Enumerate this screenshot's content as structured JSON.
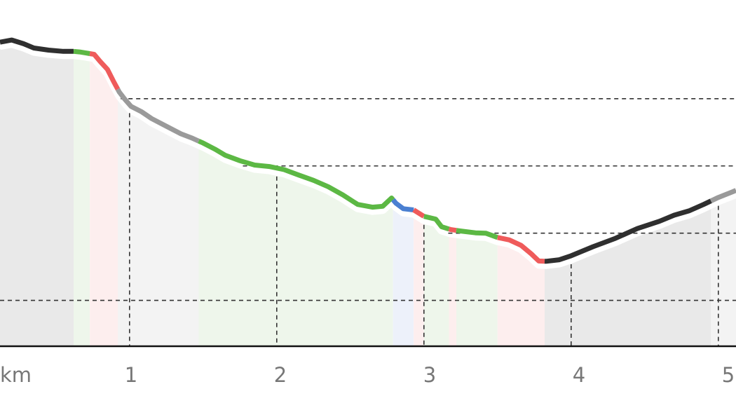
{
  "chart_data": {
    "type": "area",
    "title": "",
    "xlabel": "",
    "ylabel": "",
    "x_unit": "km",
    "x_ticks": [
      1,
      2,
      3,
      4,
      5
    ],
    "xlim": [
      0.12,
      5.12
    ],
    "ylim": [
      0,
      100
    ],
    "y_gridlines": [
      15,
      37,
      59,
      81
    ],
    "grid": true,
    "colors": {
      "black": "#2f2f2f",
      "gray": "#9a9a9a",
      "green": "#5cb844",
      "red": "#ef5b5b",
      "blue": "#4a7fd1"
    },
    "segment_fills": {
      "black": "#e9e9e9",
      "gray": "#f3f3f3",
      "green": "#eef6eb",
      "red": "#fdeeee",
      "blue": "#edf1fa"
    },
    "profile": [
      [
        0.12,
        99.5
      ],
      [
        0.2,
        100.2
      ],
      [
        0.28,
        99.0
      ],
      [
        0.35,
        97.6
      ],
      [
        0.45,
        96.9
      ],
      [
        0.55,
        96.5
      ],
      [
        0.62,
        96.5
      ],
      [
        0.66,
        96.3
      ],
      [
        0.7,
        96.0
      ],
      [
        0.76,
        95.5
      ],
      [
        0.8,
        93.2
      ],
      [
        0.85,
        90.6
      ],
      [
        0.89,
        86.8
      ],
      [
        0.93,
        83.2
      ],
      [
        0.97,
        80.7
      ],
      [
        1.01,
        78.5
      ],
      [
        1.08,
        76.8
      ],
      [
        1.15,
        74.5
      ],
      [
        1.25,
        72.0
      ],
      [
        1.35,
        69.5
      ],
      [
        1.42,
        68.2
      ],
      [
        1.5,
        66.5
      ],
      [
        1.58,
        64.5
      ],
      [
        1.65,
        62.5
      ],
      [
        1.75,
        60.7
      ],
      [
        1.85,
        59.3
      ],
      [
        1.95,
        58.8
      ],
      [
        2.05,
        57.8
      ],
      [
        2.15,
        56.0
      ],
      [
        2.25,
        54.3
      ],
      [
        2.35,
        52.2
      ],
      [
        2.45,
        49.5
      ],
      [
        2.55,
        46.4
      ],
      [
        2.65,
        45.5
      ],
      [
        2.72,
        45.8
      ],
      [
        2.78,
        48.5
      ],
      [
        2.81,
        46.8
      ],
      [
        2.86,
        45.0
      ],
      [
        2.93,
        44.6
      ],
      [
        3.0,
        42.5
      ],
      [
        3.08,
        41.6
      ],
      [
        3.12,
        39.1
      ],
      [
        3.18,
        38.2
      ],
      [
        3.25,
        37.7
      ],
      [
        3.35,
        37.1
      ],
      [
        3.42,
        37.0
      ],
      [
        3.5,
        35.6
      ],
      [
        3.58,
        34.8
      ],
      [
        3.66,
        33.0
      ],
      [
        3.73,
        30.2
      ],
      [
        3.78,
        27.9
      ],
      [
        3.83,
        27.8
      ],
      [
        3.92,
        28.3
      ],
      [
        4.0,
        29.6
      ],
      [
        4.15,
        32.6
      ],
      [
        4.3,
        35.3
      ],
      [
        4.45,
        38.5
      ],
      [
        4.6,
        40.9
      ],
      [
        4.7,
        42.9
      ],
      [
        4.8,
        44.3
      ],
      [
        4.9,
        46.4
      ],
      [
        5.0,
        48.7
      ],
      [
        5.1,
        50.6
      ],
      [
        5.12,
        51.0
      ]
    ],
    "segments": [
      {
        "color": "black",
        "x": [
          0.12,
          0.62
        ]
      },
      {
        "color": "green",
        "x": [
          0.62,
          0.73
        ]
      },
      {
        "color": "red",
        "x": [
          0.73,
          0.92
        ]
      },
      {
        "color": "gray",
        "x": [
          0.92,
          1.47
        ]
      },
      {
        "color": "green",
        "x": [
          1.47,
          2.79
        ]
      },
      {
        "color": "blue",
        "x": [
          2.79,
          2.93
        ]
      },
      {
        "color": "red",
        "x": [
          2.93,
          3.0
        ]
      },
      {
        "color": "green",
        "x": [
          3.0,
          3.17
        ]
      },
      {
        "color": "red",
        "x": [
          3.17,
          3.22
        ]
      },
      {
        "color": "green",
        "x": [
          3.22,
          3.5
        ]
      },
      {
        "color": "red",
        "x": [
          3.5,
          3.82
        ]
      },
      {
        "color": "black",
        "x": [
          3.82,
          4.95
        ]
      },
      {
        "color": "gray",
        "x": [
          4.95,
          5.12
        ]
      }
    ],
    "tick_labels": [
      "km",
      "1",
      "2",
      "3",
      "4",
      "5"
    ]
  }
}
